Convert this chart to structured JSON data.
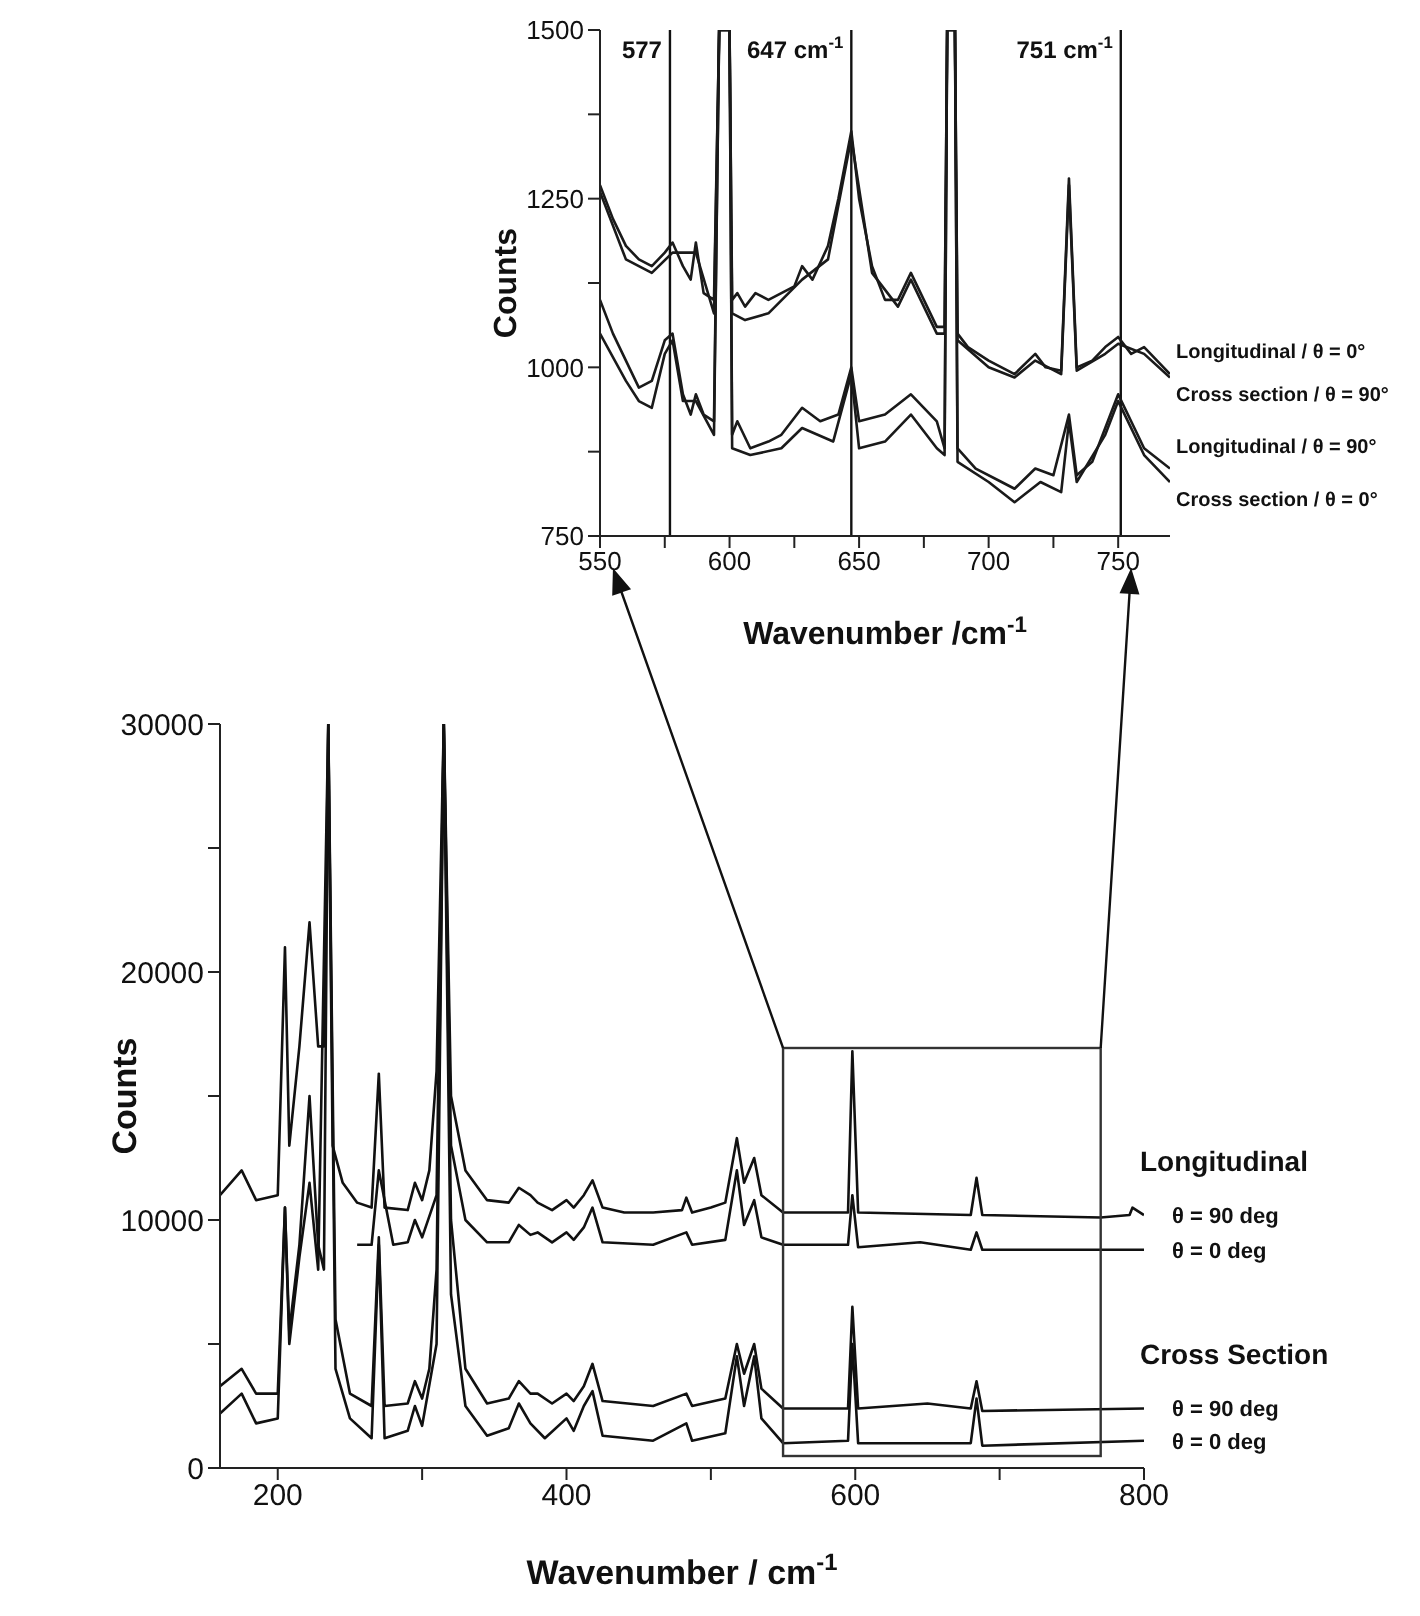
{
  "chart_data": [
    {
      "type": "line",
      "xlabel": "Wavenumber /cm$^{-1}$",
      "ylabel": "Counts",
      "xlim": [
        550,
        770
      ],
      "ylim": [
        750,
        1500
      ],
      "xticks": [
        550,
        {
          "value": 575,
          "label": null
        },
        600,
        {
          "value": 625,
          "label": null
        },
        650,
        {
          "value": 675,
          "label": null
        },
        700,
        {
          "value": 725,
          "label": null
        },
        750
      ],
      "yticks": [
        750,
        {
          "value": 875,
          "label": null
        },
        1000,
        {
          "value": 1125,
          "label": null
        },
        1250,
        {
          "value": 1375,
          "label": null
        },
        1500
      ],
      "marker": "none",
      "ref_lines": [
        {
          "axis": "x",
          "value": 577,
          "label": "577"
        },
        {
          "axis": "x",
          "value": 647,
          "label": "647 cm$^{-1}$"
        },
        {
          "axis": "x",
          "value": 751,
          "label": "751 cm$^{-1}$"
        }
      ],
      "series": [
        {
          "name": "Longitudinal    / θ = 0°",
          "color": "#1a1a1a",
          "x": [
            550,
            555,
            560,
            565,
            570,
            575,
            578,
            582,
            585,
            587,
            590,
            594,
            596,
            600,
            601,
            603,
            606,
            610,
            615,
            620,
            625,
            628,
            632,
            638,
            642,
            647,
            650,
            655,
            660,
            665,
            670,
            675,
            680,
            683,
            684,
            687,
            688,
            692,
            700,
            705,
            710,
            718,
            722,
            728,
            731,
            734,
            740,
            745,
            750,
            755,
            760,
            765,
            770
          ],
          "values": [
            1270,
            1220,
            1180,
            1160,
            1150,
            1170,
            1185,
            1150,
            1130,
            1185,
            1110,
            1100,
            1500,
            1500,
            1100,
            1110,
            1090,
            1110,
            1100,
            1110,
            1120,
            1150,
            1130,
            1180,
            1250,
            1350,
            1250,
            1150,
            1100,
            1100,
            1140,
            1100,
            1060,
            1060,
            1500,
            1500,
            1050,
            1030,
            1010,
            1000,
            990,
            1020,
            1000,
            995,
            1280,
            1000,
            1010,
            1030,
            1045,
            1020,
            1030,
            1010,
            990
          ]
        },
        {
          "name": "Cross section / θ = 90°",
          "color": "#1a1a1a",
          "x": [
            550,
            560,
            570,
            578,
            587,
            594,
            596,
            600,
            601,
            606,
            615,
            628,
            638,
            647,
            655,
            665,
            670,
            680,
            683,
            684,
            687,
            688,
            700,
            710,
            718,
            728,
            731,
            734,
            745,
            750,
            760,
            770
          ],
          "values": [
            1260,
            1160,
            1140,
            1170,
            1170,
            1080,
            1500,
            1500,
            1080,
            1070,
            1080,
            1130,
            1160,
            1340,
            1140,
            1090,
            1130,
            1050,
            1050,
            1500,
            1500,
            1040,
            1000,
            985,
            1010,
            990,
            1270,
            995,
            1020,
            1035,
            1020,
            985
          ]
        },
        {
          "name": "Longitudinal    / θ = 90°",
          "color": "#1a1a1a",
          "x": [
            550,
            555,
            565,
            570,
            575,
            578,
            582,
            585,
            587,
            590,
            594,
            596,
            600,
            601,
            603,
            608,
            615,
            620,
            628,
            635,
            642,
            647,
            650,
            660,
            670,
            680,
            683,
            684,
            687,
            688,
            695,
            705,
            710,
            718,
            725,
            731,
            734,
            740,
            745,
            750,
            755,
            760,
            770
          ],
          "values": [
            1100,
            1050,
            970,
            980,
            1040,
            1050,
            960,
            930,
            960,
            930,
            920,
            1500,
            1500,
            900,
            920,
            880,
            890,
            900,
            940,
            920,
            930,
            1000,
            920,
            930,
            960,
            920,
            880,
            1500,
            1500,
            880,
            850,
            830,
            820,
            850,
            840,
            930,
            840,
            860,
            910,
            960,
            920,
            880,
            850
          ]
        },
        {
          "name": "Cross section / θ = 0°",
          "color": "#1a1a1a",
          "x": [
            550,
            560,
            565,
            570,
            575,
            578,
            582,
            587,
            594,
            596,
            600,
            601,
            608,
            620,
            628,
            640,
            647,
            650,
            660,
            670,
            680,
            683,
            684,
            687,
            688,
            700,
            710,
            720,
            728,
            731,
            734,
            745,
            750,
            760,
            770
          ],
          "values": [
            1050,
            980,
            950,
            940,
            1020,
            1040,
            950,
            950,
            900,
            1500,
            1500,
            880,
            870,
            880,
            910,
            890,
            990,
            880,
            890,
            930,
            880,
            870,
            1500,
            1500,
            860,
            830,
            800,
            830,
            815,
            920,
            830,
            900,
            950,
            870,
            830
          ]
        }
      ]
    },
    {
      "type": "line",
      "xlabel": "Wavenumber / cm$^{-1}$",
      "ylabel": "Counts",
      "xlim": [
        160,
        800
      ],
      "ylim": [
        0,
        30000
      ],
      "xticks": [
        200,
        {
          "value": 300,
          "label": null
        },
        400,
        {
          "value": 500,
          "label": null
        },
        600,
        {
          "value": 700,
          "label": null
        },
        800
      ],
      "yticks": [
        0,
        {
          "value": 5000,
          "label": null
        },
        10000,
        {
          "value": 15000,
          "label": null
        },
        20000,
        {
          "value": 25000,
          "label": null
        },
        30000
      ],
      "marker": "none",
      "annotations": [
        "Longitudinal",
        "Cross Section"
      ],
      "series": [
        {
          "name": "θ = 90 deg",
          "color": "#111111",
          "x": [
            160,
            175,
            185,
            200,
            205,
            208,
            215,
            222,
            228,
            232,
            235,
            238,
            245,
            255,
            265,
            270,
            274,
            290,
            295,
            300,
            305,
            310,
            315,
            320,
            330,
            345,
            360,
            367,
            375,
            380,
            390,
            400,
            405,
            412,
            418,
            425,
            440,
            460,
            480,
            483,
            487,
            500,
            510,
            518,
            523,
            530,
            535,
            550,
            595,
            598,
            602,
            680,
            684,
            688,
            770,
            790,
            792,
            800
          ],
          "values": [
            11000,
            12000,
            10800,
            11000,
            21000,
            13000,
            17000,
            22000,
            17000,
            17000,
            30000,
            13000,
            11500,
            10700,
            10500,
            15900,
            10500,
            10400,
            11500,
            10800,
            12000,
            16000,
            30000,
            15000,
            12000,
            10800,
            10700,
            11300,
            11000,
            10700,
            10400,
            10800,
            10500,
            11000,
            11600,
            10500,
            10300,
            10300,
            10400,
            10900,
            10300,
            10500,
            10700,
            13300,
            11500,
            12500,
            11000,
            10300,
            10300,
            16800,
            10300,
            10200,
            11700,
            10200,
            10100,
            10200,
            10500,
            10200
          ]
        },
        {
          "name": "θ = 0 deg",
          "color": "#111111",
          "x": [
            255,
            265,
            270,
            280,
            290,
            295,
            300,
            310,
            315,
            320,
            330,
            345,
            360,
            367,
            375,
            380,
            390,
            400,
            405,
            412,
            418,
            425,
            460,
            483,
            487,
            510,
            518,
            523,
            530,
            535,
            550,
            595,
            598,
            602,
            645,
            680,
            684,
            688,
            800
          ],
          "values": [
            9000,
            9000,
            12000,
            9000,
            9100,
            10000,
            9300,
            11000,
            30000,
            13000,
            10000,
            9100,
            9100,
            9800,
            9400,
            9500,
            9100,
            9500,
            9200,
            9700,
            10500,
            9100,
            9000,
            9500,
            9000,
            9200,
            12000,
            9800,
            10800,
            9300,
            9000,
            9000,
            11000,
            8900,
            9100,
            8800,
            9500,
            8800,
            8800
          ]
        },
        {
          "name": "θ = 90 deg",
          "color": "#111111",
          "x": [
            160,
            175,
            185,
            200,
            205,
            208,
            215,
            222,
            228,
            232,
            235,
            240,
            250,
            265,
            270,
            274,
            290,
            295,
            300,
            305,
            310,
            315,
            320,
            330,
            345,
            360,
            367,
            375,
            380,
            390,
            400,
            405,
            412,
            418,
            425,
            460,
            483,
            487,
            510,
            518,
            523,
            530,
            535,
            550,
            595,
            598,
            602,
            650,
            680,
            684,
            688,
            800
          ],
          "values": [
            3300,
            4000,
            3000,
            3000,
            10500,
            5500,
            9000,
            15000,
            9000,
            8000,
            30000,
            6000,
            3000,
            2500,
            9300,
            2500,
            2600,
            3500,
            2800,
            4000,
            8000,
            30000,
            10000,
            4000,
            2600,
            2800,
            3500,
            3000,
            3000,
            2600,
            3000,
            2700,
            3300,
            4200,
            2700,
            2500,
            3000,
            2500,
            2800,
            5000,
            3800,
            5000,
            3200,
            2400,
            2400,
            6500,
            2400,
            2600,
            2400,
            3500,
            2300,
            2400
          ]
        },
        {
          "name": "θ = 0 deg",
          "color": "#111111",
          "x": [
            160,
            175,
            185,
            200,
            205,
            208,
            215,
            222,
            228,
            235,
            240,
            250,
            265,
            270,
            274,
            290,
            295,
            300,
            310,
            315,
            320,
            330,
            345,
            360,
            367,
            375,
            385,
            400,
            405,
            412,
            418,
            425,
            460,
            483,
            487,
            510,
            518,
            523,
            530,
            535,
            550,
            595,
            598,
            602,
            680,
            684,
            688,
            800
          ],
          "values": [
            2200,
            3000,
            1800,
            2000,
            10500,
            5000,
            8500,
            11500,
            8000,
            30000,
            4000,
            2000,
            1200,
            9000,
            1200,
            1500,
            2500,
            1700,
            5000,
            30000,
            7000,
            2500,
            1300,
            1600,
            2600,
            1800,
            1200,
            2000,
            1500,
            2500,
            3100,
            1300,
            1100,
            1800,
            1100,
            1400,
            4500,
            2500,
            4500,
            2000,
            1000,
            1100,
            5000,
            1000,
            1000,
            2800,
            900,
            1100
          ]
        }
      ]
    }
  ]
}
